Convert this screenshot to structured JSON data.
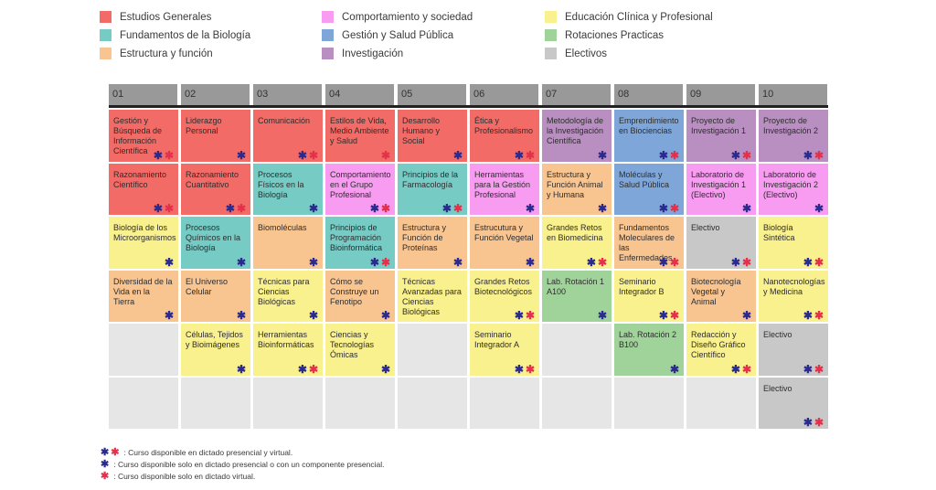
{
  "legend": [
    {
      "label": "Estudios Generales",
      "color": "#f26b66"
    },
    {
      "label": "Fundamentos de la Biología",
      "color": "#76ccc5"
    },
    {
      "label": "Estructura y función",
      "color": "#f8c490"
    },
    {
      "label": "Comportamiento y sociedad",
      "color": "#f79cf0"
    },
    {
      "label": "Gestión y Salud Pública",
      "color": "#7fa6d8"
    },
    {
      "label": "Investigación",
      "color": "#b98fc1"
    },
    {
      "label": "Educación Clínica y Profesional",
      "color": "#f9f08e"
    },
    {
      "label": "Rotaciones Practicas",
      "color": "#a0d39a"
    },
    {
      "label": "Electivos",
      "color": "#c8c8c8"
    }
  ],
  "columns": [
    {
      "label": "01",
      "cells": [
        {
          "title": "Gestión y Búsqueda de Información Científica",
          "color": "#f26b66",
          "marks": "both"
        },
        {
          "title": "Razonamiento Científico",
          "color": "#f26b66",
          "marks": "both"
        },
        {
          "title": "Biología de los Microorganismos",
          "color": "#f9f08e",
          "marks": "blue"
        },
        {
          "title": "Diversidad de la Vida en la Tierra",
          "color": "#f8c490",
          "marks": "blue"
        },
        {
          "title": "",
          "color": "#e6e6e6",
          "marks": ""
        },
        {
          "title": "",
          "color": "#e6e6e6",
          "marks": ""
        }
      ]
    },
    {
      "label": "02",
      "cells": [
        {
          "title": "Liderazgo Personal",
          "color": "#f26b66",
          "marks": "blue"
        },
        {
          "title": "Razonamiento Cuantitativo",
          "color": "#f26b66",
          "marks": "both"
        },
        {
          "title": "Procesos Químicos en la Biología",
          "color": "#76ccc5",
          "marks": "blue"
        },
        {
          "title": "El Universo Celular",
          "color": "#f8c490",
          "marks": "blue"
        },
        {
          "title": "Células, Tejidos y Bioimágenes",
          "color": "#f9f08e",
          "marks": "blue"
        },
        {
          "title": "",
          "color": "#e6e6e6",
          "marks": ""
        }
      ]
    },
    {
      "label": "03",
      "cells": [
        {
          "title": "Comunicación",
          "color": "#f26b66",
          "marks": "both"
        },
        {
          "title": "Procesos Físicos en la Biología",
          "color": "#76ccc5",
          "marks": "blue"
        },
        {
          "title": "Biomoléculas",
          "color": "#f8c490",
          "marks": "blue"
        },
        {
          "title": "Técnicas para Ciencias Biológicas",
          "color": "#f9f08e",
          "marks": "blue"
        },
        {
          "title": "Herramientas Bioinformáticas",
          "color": "#f9f08e",
          "marks": "both"
        },
        {
          "title": "",
          "color": "#e6e6e6",
          "marks": ""
        }
      ]
    },
    {
      "label": "04",
      "cells": [
        {
          "title": "Estilos de Vida, Medio Ambiente y Salud",
          "color": "#f26b66",
          "marks": "red"
        },
        {
          "title": "Comportamiento en el Grupo Profesional",
          "color": "#f79cf0",
          "marks": "both"
        },
        {
          "title": "Principios de Programación Bioinformática",
          "color": "#76ccc5",
          "marks": "both"
        },
        {
          "title": "Cómo se Construye un Fenotipo",
          "color": "#f8c490",
          "marks": "blue"
        },
        {
          "title": "Ciencias y Tecnologías Ómicas",
          "color": "#f9f08e",
          "marks": "blue"
        },
        {
          "title": "",
          "color": "#e6e6e6",
          "marks": ""
        }
      ]
    },
    {
      "label": "05",
      "cells": [
        {
          "title": "Desarrollo Humano y Social",
          "color": "#f26b66",
          "marks": "blue"
        },
        {
          "title": "Principios de la Farmacología",
          "color": "#76ccc5",
          "marks": "both"
        },
        {
          "title": "Estructura y Función de Proteínas",
          "color": "#f8c490",
          "marks": "blue"
        },
        {
          "title": "Técnicas Avanzadas para Ciencias Biológicas",
          "color": "#f9f08e",
          "marks": ""
        },
        {
          "title": "",
          "color": "#e6e6e6",
          "marks": ""
        },
        {
          "title": "",
          "color": "#e6e6e6",
          "marks": ""
        }
      ]
    },
    {
      "label": "06",
      "cells": [
        {
          "title": "Ética y Profesionalismo",
          "color": "#f26b66",
          "marks": "both"
        },
        {
          "title": "Herramientas para la Gestión Profesional",
          "color": "#f79cf0",
          "marks": "blue"
        },
        {
          "title": "Estrucutura y Función Vegetal",
          "color": "#f8c490",
          "marks": "blue"
        },
        {
          "title": "Grandes Retos Biotecnológicos",
          "color": "#f9f08e",
          "marks": "both"
        },
        {
          "title": "Seminario Integrador A",
          "color": "#f9f08e",
          "marks": "both"
        },
        {
          "title": "",
          "color": "#e6e6e6",
          "marks": ""
        }
      ]
    },
    {
      "label": "07",
      "cells": [
        {
          "title": "Metodología de la Investigación Científica",
          "color": "#b98fc1",
          "marks": "blue"
        },
        {
          "title": "Estructura y Función Animal y Humana",
          "color": "#f8c490",
          "marks": "blue"
        },
        {
          "title": "Grandes Retos en Biomedicina",
          "color": "#f9f08e",
          "marks": "both"
        },
        {
          "title": "Lab. Rotación 1 A100",
          "color": "#a0d39a",
          "marks": "blue"
        },
        {
          "title": "",
          "color": "#e6e6e6",
          "marks": ""
        },
        {
          "title": "",
          "color": "#e6e6e6",
          "marks": ""
        }
      ]
    },
    {
      "label": "08",
      "cells": [
        {
          "title": "Emprendimiento en Biociencias",
          "color": "#7fa6d8",
          "marks": "both"
        },
        {
          "title": "Moléculas y Salud Pública",
          "color": "#7fa6d8",
          "marks": "both"
        },
        {
          "title": "Fundamentos Moleculares de las Enfermedades",
          "color": "#f8c490",
          "marks": "both"
        },
        {
          "title": "Seminario Integrador B",
          "color": "#f9f08e",
          "marks": "both"
        },
        {
          "title": "Lab. Rotación 2 B100",
          "color": "#a0d39a",
          "marks": "blue"
        },
        {
          "title": "",
          "color": "#e6e6e6",
          "marks": ""
        }
      ]
    },
    {
      "label": "09",
      "cells": [
        {
          "title": "Proyecto de Investigación 1",
          "color": "#b98fc1",
          "marks": "both"
        },
        {
          "title": "Laboratorio de Investigación 1 (Electivo)",
          "color": "#f79cf0",
          "marks": "blue"
        },
        {
          "title": "Electivo",
          "color": "#c8c8c8",
          "marks": "both"
        },
        {
          "title": "Biotecnología Vegetal y Animal",
          "color": "#f8c490",
          "marks": "blue"
        },
        {
          "title": "Redacción y Diseño Gráfico Científico",
          "color": "#f9f08e",
          "marks": "both"
        },
        {
          "title": "",
          "color": "#e6e6e6",
          "marks": ""
        }
      ]
    },
    {
      "label": "10",
      "cells": [
        {
          "title": "Proyecto de Investigación 2",
          "color": "#b98fc1",
          "marks": "both"
        },
        {
          "title": "Laboratorio de Investigación 2 (Electivo)",
          "color": "#f79cf0",
          "marks": "blue"
        },
        {
          "title": "Biología Sintética",
          "color": "#f9f08e",
          "marks": "both"
        },
        {
          "title": "Nanotecnologías y Medicina",
          "color": "#f9f08e",
          "marks": "both"
        },
        {
          "title": "Electivo",
          "color": "#c8c8c8",
          "marks": "both"
        },
        {
          "title": "Electivo",
          "color": "#c8c8c8",
          "marks": "both"
        }
      ]
    }
  ],
  "notes": [
    {
      "marks": "both",
      "text": ": Curso disponible en dictado presencial y virtual."
    },
    {
      "marks": "blue",
      "text": ": Curso disponible solo en dictado presencial o con un componente presencial."
    },
    {
      "marks": "red",
      "text": ": Curso disponible solo en dictado virtual."
    }
  ],
  "mark_symbol": "✱"
}
